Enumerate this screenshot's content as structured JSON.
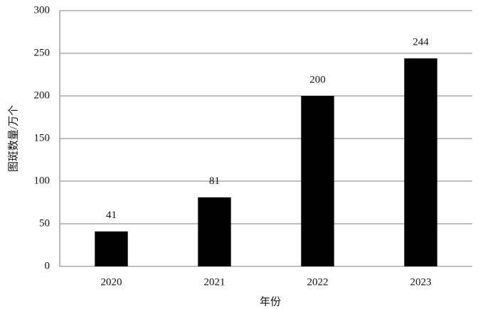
{
  "chart_data": {
    "type": "bar",
    "x_label": "年份",
    "y_label": "图斑数量/万个",
    "categories": [
      "2020",
      "2021",
      "2022",
      "2023"
    ],
    "values": [
      41,
      81,
      200,
      244
    ],
    "color": "#000000",
    "ylim": [
      0,
      300
    ],
    "yticks": [
      0,
      50,
      100,
      150,
      200,
      250,
      300
    ],
    "grid": true,
    "data_labels": true
  }
}
